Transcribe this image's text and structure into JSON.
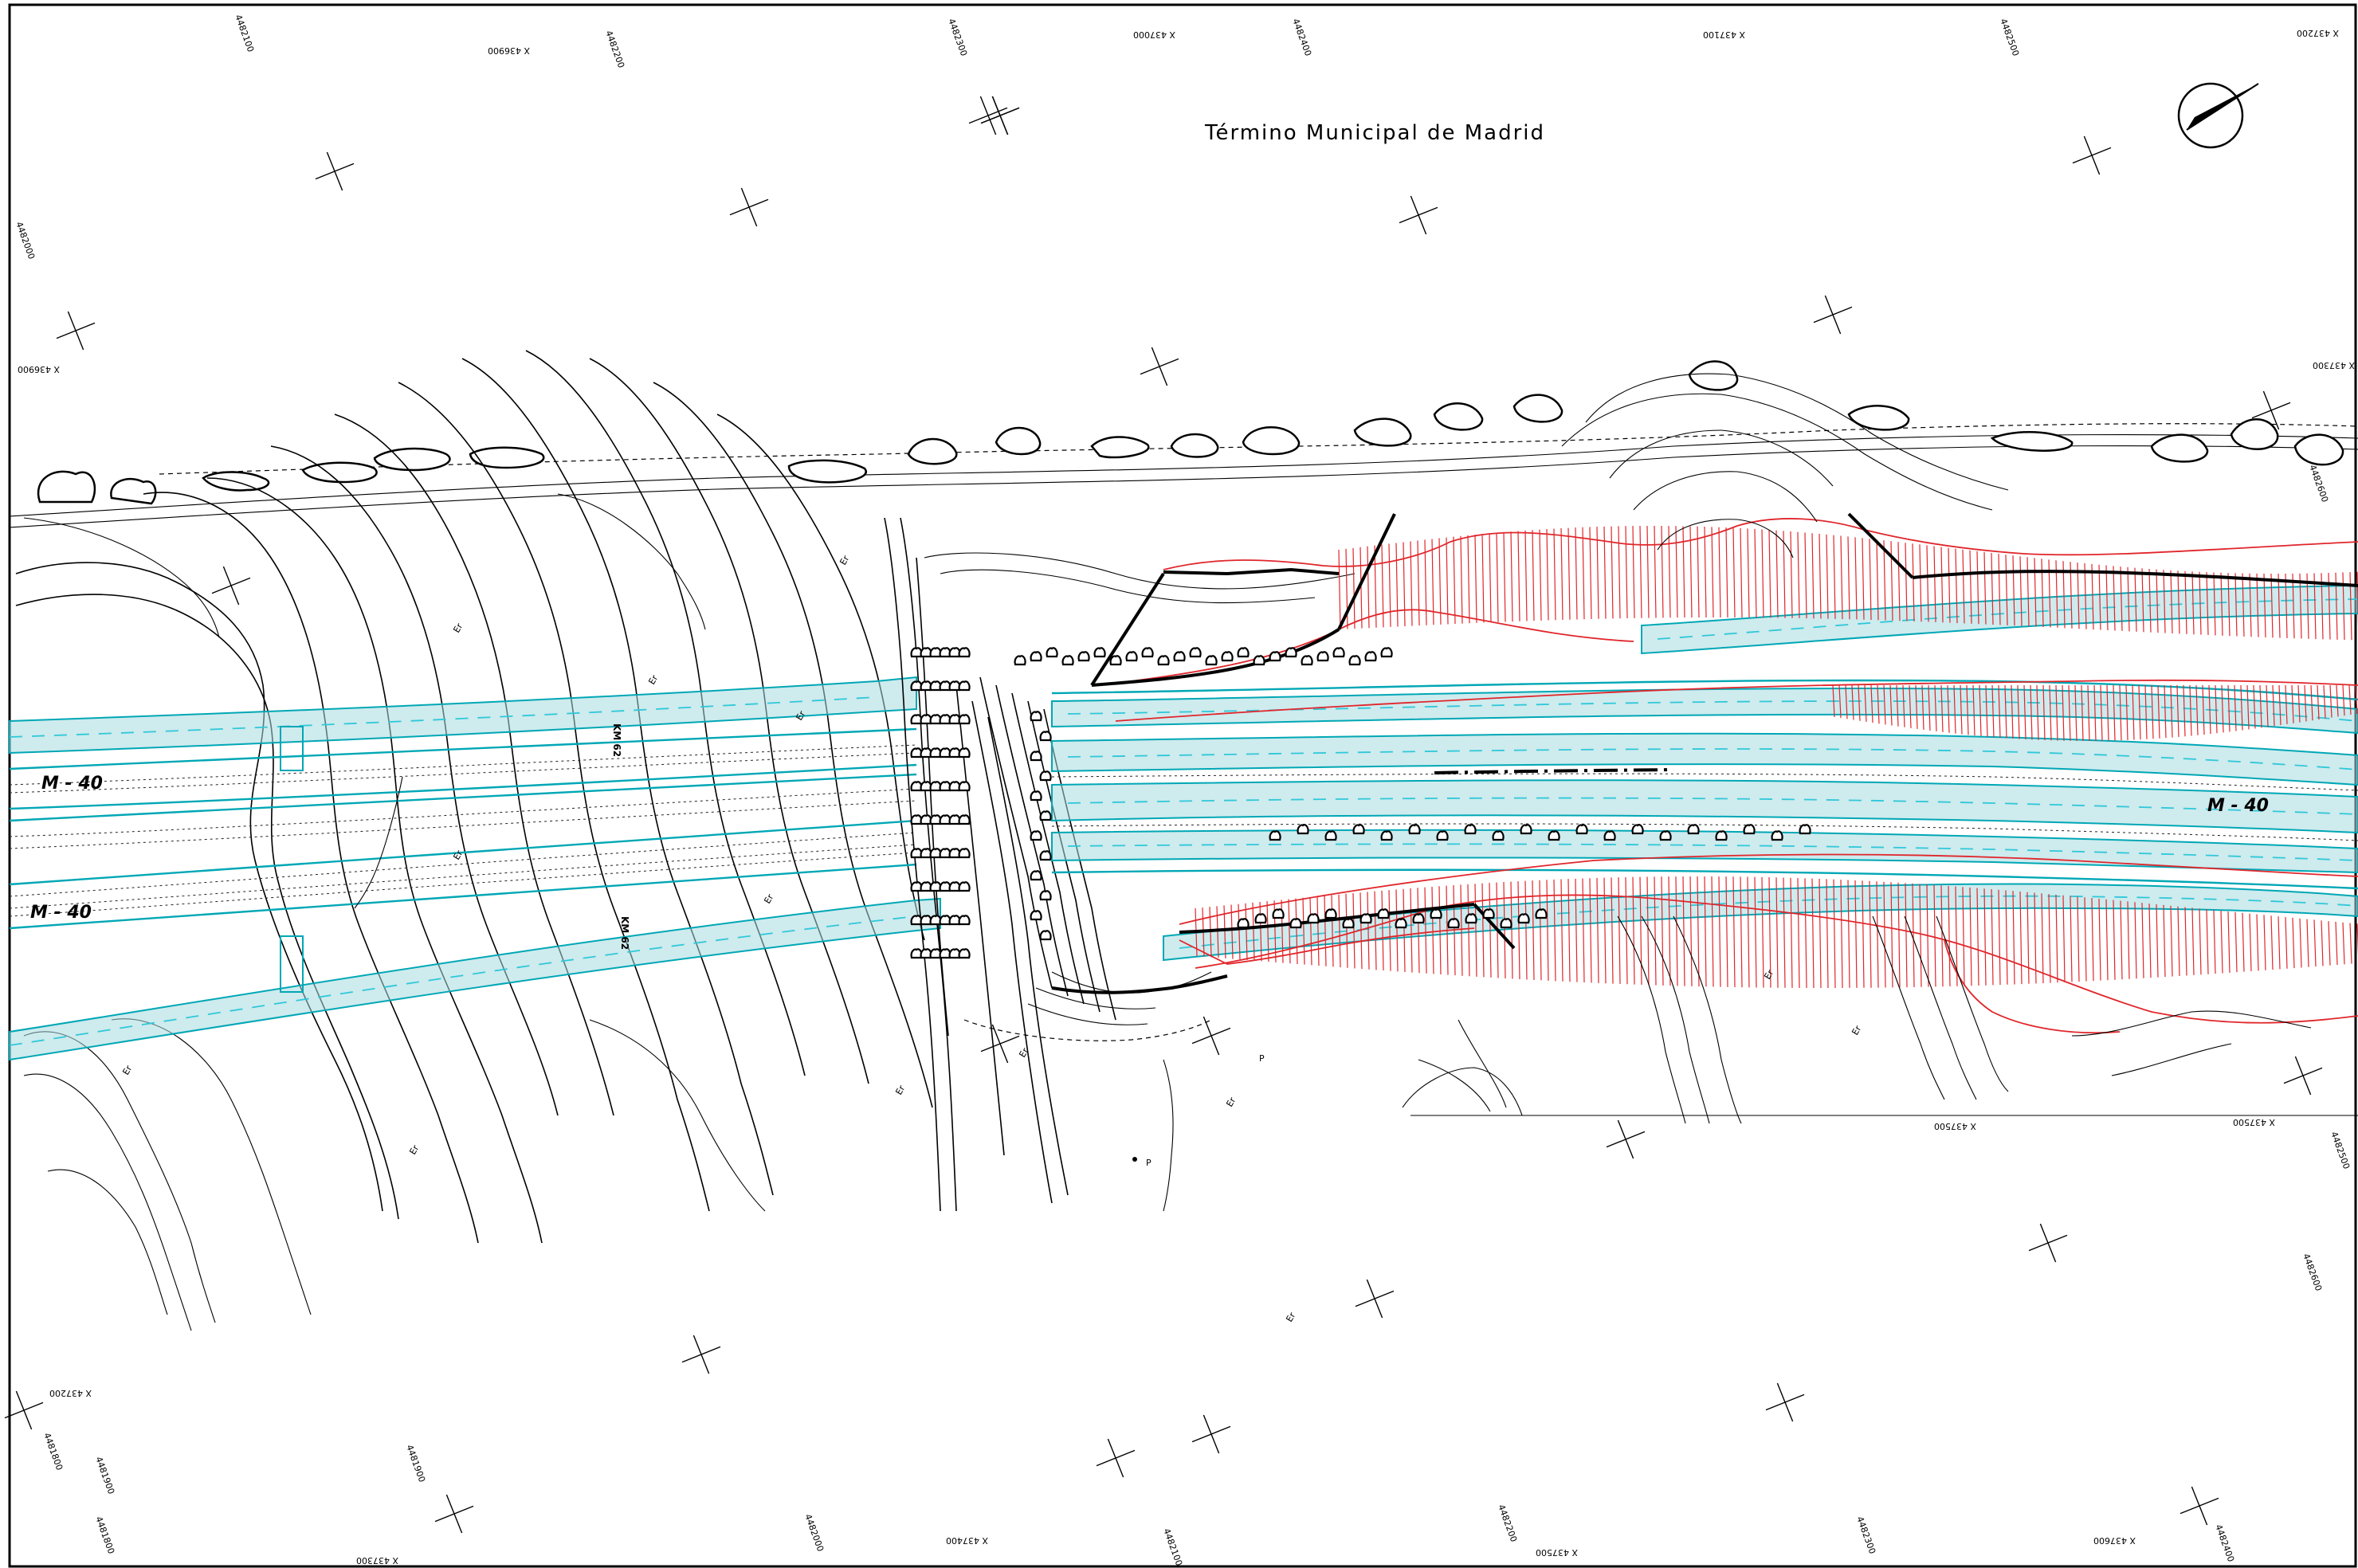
{
  "title": "Término Municipal de Madrid",
  "road_labels": [
    "M - 40",
    "M - 40",
    "M - 40"
  ],
  "km_labels": [
    "KM 62",
    "KM 62"
  ],
  "mark_label": "Er",
  "point_label": "P",
  "grid_labels": [
    "X 436900",
    "4482100",
    "4482200",
    "4482300",
    "X 437000",
    "4482400",
    "X 437100",
    "4482500",
    "X 437200",
    "4482000",
    "X 436900",
    "X 437300",
    "4482600",
    "X 437500",
    "4482500",
    "X 437200",
    "4481800",
    "4481900",
    "X 437300",
    "4482000",
    "X 437400",
    "4482100",
    "4482200",
    "4482300",
    "X 437600",
    "4482400",
    "X 437500",
    "4481900",
    "4481800",
    "X 437500",
    "4482600"
  ],
  "colors": {
    "road_fill": "#a6dbe0",
    "road_edge": "#00a7b5",
    "lane_marking": "#2fc8d8",
    "earthwork": "#e0262b",
    "linework": "#000000"
  },
  "icons": [
    "north-arrow-icon",
    "tree-icon",
    "grid-cross-icon"
  ]
}
